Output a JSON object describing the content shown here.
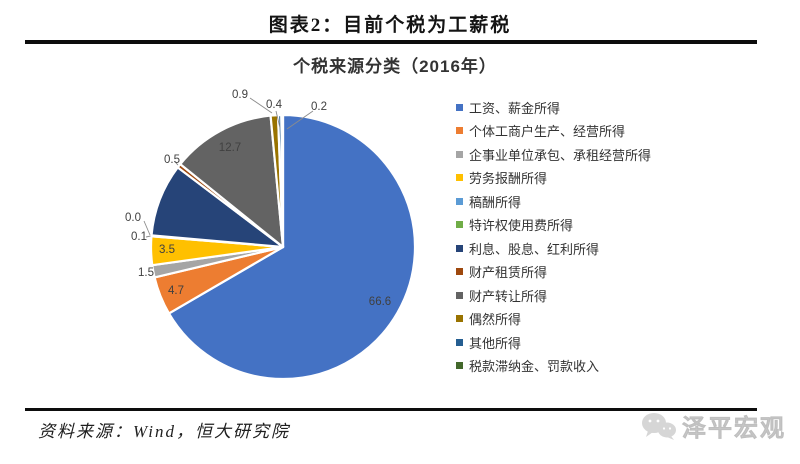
{
  "header": {
    "title": "图表2：目前个税为工薪税"
  },
  "chart_data": {
    "type": "pie",
    "title": "个税来源分类（2016年）",
    "unit": "percent",
    "legend_position": "right",
    "start_angle_deg": 0,
    "direction": "clockwise",
    "categories": [
      "工资、薪金所得",
      "个体工商户生产、经营所得",
      "企事业单位承包、承租经营所得",
      "劳务报酬所得",
      "稿酬所得",
      "特许权使用费所得",
      "利息、股息、红利所得",
      "财产租赁所得",
      "财产转让所得",
      "偶然所得",
      "其他所得",
      "税款滞纳金、罚款收入"
    ],
    "values": [
      66.6,
      4.7,
      1.5,
      3.5,
      0.1,
      0.0,
      8.9,
      0.5,
      12.7,
      0.9,
      0.4,
      0.2
    ],
    "labels_shown": [
      "66.6",
      "4.7",
      "1.5",
      "3.5",
      "0.1",
      "0.0",
      "",
      "0.5",
      "12.7",
      "0.9",
      "0.4",
      "0.2"
    ],
    "colors": [
      "#4472C4",
      "#ED7D31",
      "#A5A5A5",
      "#FFC000",
      "#5B9BD5",
      "#70AD47",
      "#264478",
      "#9E480E",
      "#636363",
      "#997300",
      "#255E91",
      "#43682B"
    ]
  },
  "footer": {
    "source": "资料来源：Wind，恒大研究院",
    "watermark": "泽平宏观"
  }
}
